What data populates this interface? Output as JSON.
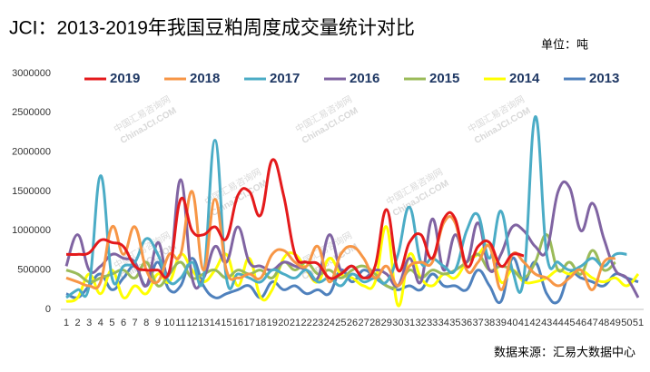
{
  "chart_data": {
    "type": "line",
    "title": "JCI：2013-2019年我国豆粕周度成交量统计对比",
    "unit": "单位：吨",
    "source": "数据来源：汇易大数据中心",
    "watermark": [
      "中国汇易咨询网",
      "ChinaJCI.COM"
    ],
    "categories": [
      "1",
      "2",
      "3",
      "4",
      "5",
      "6",
      "7",
      "8",
      "9",
      "10",
      "11",
      "12",
      "13",
      "14",
      "15",
      "16",
      "17",
      "18",
      "19",
      "20",
      "21",
      "22",
      "23",
      "24",
      "25",
      "26",
      "27",
      "28",
      "29",
      "30",
      "31",
      "32",
      "33",
      "34",
      "35",
      "36",
      "37",
      "38",
      "39",
      "40",
      "41",
      "42",
      "43",
      "44",
      "45",
      "46",
      "47",
      "48",
      "49",
      "50",
      "51"
    ],
    "ylim": [
      0,
      3000000
    ],
    "yticks": [
      0,
      500000,
      1000000,
      1500000,
      2000000,
      2500000,
      3000000
    ],
    "grid": false,
    "legend": "top",
    "series": [
      {
        "name": "2019",
        "color": "#e41a1c",
        "values": [
          700000,
          700000,
          720000,
          880000,
          850000,
          800000,
          550000,
          500000,
          500000,
          480000,
          1400000,
          1000000,
          950000,
          1050000,
          900000,
          1450000,
          1500000,
          1200000,
          1900000,
          1450000,
          700000,
          600000,
          580000,
          400000,
          450000,
          550000,
          400000,
          550000,
          1270000,
          500000,
          850000,
          950000,
          650000,
          1150000,
          1150000,
          550000,
          800000,
          850000,
          550000,
          700000,
          680000,
          null,
          null,
          null,
          null,
          null,
          null,
          null,
          null,
          null,
          null
        ]
      },
      {
        "name": "2018",
        "color": "#f79646",
        "values": [
          400000,
          350000,
          300000,
          350000,
          1050000,
          700000,
          1050000,
          500000,
          350000,
          700000,
          700000,
          1500000,
          500000,
          1400000,
          500000,
          400000,
          450000,
          400000,
          700000,
          750000,
          600000,
          550000,
          800000,
          350000,
          700000,
          800000,
          650000,
          400000,
          550000,
          300000,
          550000,
          600000,
          600000,
          1100000,
          1100000,
          500000,
          600000,
          800000,
          250000,
          700000,
          600000,
          450000,
          400000,
          300000,
          400000,
          500000,
          250000,
          600000,
          650000,
          null,
          null
        ]
      },
      {
        "name": "2017",
        "color": "#4bacc6",
        "values": [
          150000,
          250000,
          300000,
          1700000,
          400000,
          550000,
          600000,
          900000,
          700000,
          350000,
          400000,
          600000,
          400000,
          2150000,
          400000,
          450000,
          400000,
          350000,
          500000,
          450000,
          400000,
          500000,
          350000,
          400000,
          300000,
          450000,
          350000,
          400000,
          350000,
          700000,
          1300000,
          600000,
          650000,
          550000,
          500000,
          1000000,
          1200000,
          650000,
          1250000,
          500000,
          400000,
          2450000,
          700000,
          600000,
          500000,
          550000,
          650000,
          550000,
          700000,
          700000,
          null
        ]
      },
      {
        "name": "2016",
        "color": "#8064a2",
        "values": [
          550000,
          950000,
          500000,
          550000,
          700000,
          650000,
          600000,
          300000,
          850000,
          450000,
          1650000,
          400000,
          400000,
          800000,
          600000,
          1050000,
          600000,
          550000,
          500000,
          600000,
          550000,
          500000,
          400000,
          950000,
          500000,
          550000,
          400000,
          500000,
          450000,
          300000,
          650000,
          350000,
          1150000,
          500000,
          950000,
          600000,
          1100000,
          500000,
          700000,
          1050000,
          1000000,
          800000,
          750000,
          1500000,
          1550000,
          1000000,
          1350000,
          900000,
          500000,
          400000,
          150000
        ]
      },
      {
        "name": "2015",
        "color": "#9bbb59",
        "values": [
          500000,
          450000,
          350000,
          400000,
          450000,
          500000,
          400000,
          600000,
          300000,
          450000,
          600000,
          400000,
          450000,
          500000,
          400000,
          500000,
          450000,
          500000,
          400000,
          600000,
          500000,
          600000,
          450000,
          500000,
          400000,
          500000,
          550000,
          450000,
          300000,
          300000,
          500000,
          400000,
          500000,
          450000,
          500000,
          600000,
          700000,
          500000,
          550000,
          500000,
          400000,
          600000,
          950000,
          500000,
          600000,
          450000,
          750000,
          500000,
          600000,
          null,
          null
        ]
      },
      {
        "name": "2014",
        "color": "#ffff00",
        "values": [
          100000,
          150000,
          450000,
          200000,
          500000,
          150000,
          300000,
          200000,
          450000,
          350000,
          700000,
          500000,
          350000,
          500000,
          700000,
          300000,
          650000,
          150000,
          250000,
          650000,
          700000,
          500000,
          350000,
          650000,
          450000,
          400000,
          300000,
          350000,
          1050000,
          50000,
          700000,
          400000,
          300000,
          450000,
          400000,
          600000,
          700000,
          800000,
          350000,
          500000,
          350000,
          350000,
          400000,
          500000,
          450000,
          500000,
          400000,
          350000,
          400000,
          300000,
          450000
        ]
      },
      {
        "name": "2013",
        "color": "#4f81bd",
        "values": [
          200000,
          150000,
          300000,
          450000,
          250000,
          400000,
          550000,
          300000,
          600000,
          250000,
          300000,
          650000,
          300000,
          150000,
          200000,
          250000,
          300000,
          150000,
          350000,
          250000,
          300000,
          200000,
          250000,
          200000,
          500000,
          350000,
          500000,
          400000,
          300000,
          250000,
          300000,
          250000,
          450000,
          300000,
          300000,
          250000,
          500000,
          300000,
          100000,
          650000,
          350000,
          600000,
          200000,
          100000,
          450000,
          400000,
          350000,
          300000,
          450000,
          400000,
          350000
        ]
      }
    ]
  }
}
